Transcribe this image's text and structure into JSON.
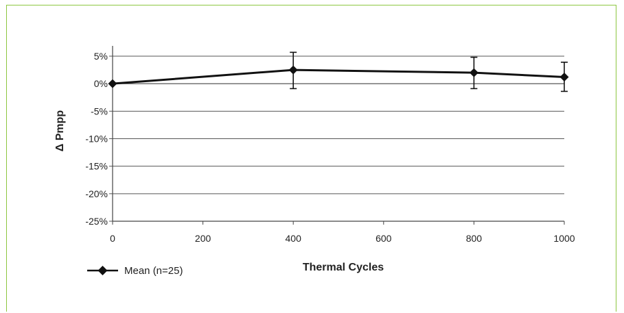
{
  "chart_data": {
    "type": "line",
    "title": "",
    "xlabel": "Thermal Cycles",
    "ylabel": "Δ Pmpp",
    "xlim": [
      0,
      1000
    ],
    "ylim": [
      -25,
      5
    ],
    "xticks": [
      0,
      200,
      400,
      600,
      800,
      1000
    ],
    "yticks": [
      5,
      0,
      -5,
      -10,
      -15,
      -20,
      -25
    ],
    "ytick_labels": [
      "5%",
      "0%",
      "-5%",
      "-10%",
      "-15%",
      "-20%",
      "-25%"
    ],
    "xtick_labels": [
      "0",
      "200",
      "400",
      "600",
      "800",
      "1000"
    ],
    "grid": "horizontal",
    "legend_position": "bottom-left",
    "series": [
      {
        "name": "Mean (n=25)",
        "x": [
          0,
          400,
          800,
          1000
        ],
        "y": [
          0,
          2.5,
          2.0,
          1.2
        ],
        "error_low": [
          0,
          -0.9,
          -0.9,
          -1.4
        ],
        "error_high": [
          0,
          5.7,
          4.8,
          3.9
        ],
        "color": "#111111",
        "marker": "diamond"
      }
    ]
  }
}
